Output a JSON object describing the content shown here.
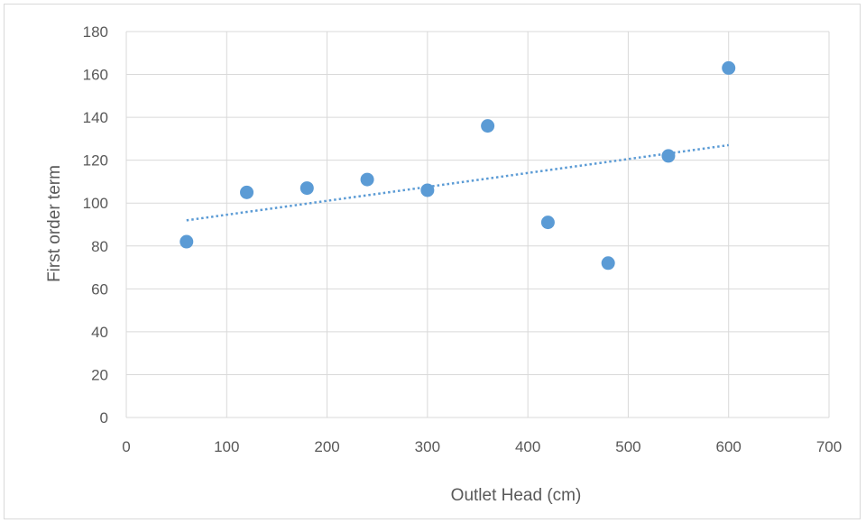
{
  "chart_data": {
    "type": "scatter",
    "xlabel": "Outlet Head (cm)",
    "ylabel": "First order term",
    "xlim": [
      0,
      700
    ],
    "ylim": [
      0,
      180
    ],
    "x_ticks": [
      0,
      100,
      200,
      300,
      400,
      500,
      600,
      700
    ],
    "y_ticks": [
      0,
      20,
      40,
      60,
      80,
      100,
      120,
      140,
      160,
      180
    ],
    "grid": true,
    "legend": "none",
    "series": [
      {
        "points": [
          {
            "x": 60,
            "y": 82
          },
          {
            "x": 120,
            "y": 105
          },
          {
            "x": 180,
            "y": 107
          },
          {
            "x": 240,
            "y": 111
          },
          {
            "x": 300,
            "y": 106
          },
          {
            "x": 360,
            "y": 136
          },
          {
            "x": 420,
            "y": 91
          },
          {
            "x": 480,
            "y": 72
          },
          {
            "x": 540,
            "y": 122
          },
          {
            "x": 600,
            "y": 163
          }
        ],
        "color": "#5b9bd5"
      }
    ],
    "trendline": {
      "type": "linear",
      "style": "dotted",
      "color": "#5b9bd5",
      "x_range": [
        60,
        600
      ]
    },
    "colors": {
      "grid": "#d9d9d9",
      "text": "#595959"
    }
  }
}
